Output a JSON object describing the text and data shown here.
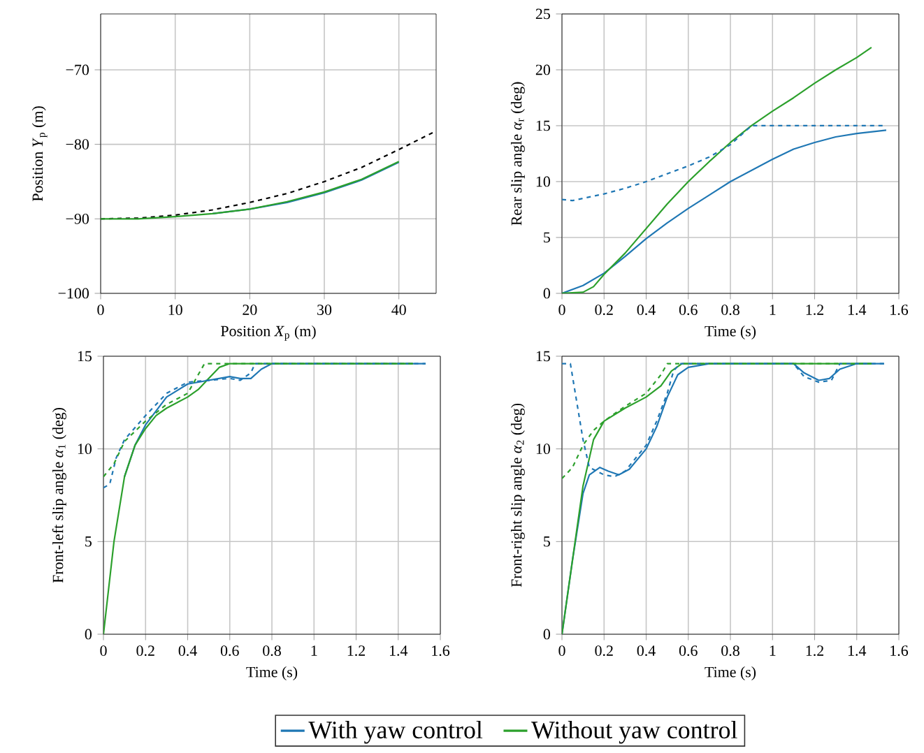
{
  "chart_data": [
    {
      "type": "line",
      "xlabel": "Position *X*$_{p}$ (m)",
      "ylabel": "Position *Y*$_{p}$ (m)",
      "xlim": [
        0,
        45
      ],
      "ylim": [
        -100,
        -62.5
      ],
      "xticks": [
        0,
        10,
        20,
        30,
        40
      ],
      "yticks": [
        {
          "value": -100,
          "label": "−100"
        },
        {
          "value": -90,
          "label": "−90"
        },
        {
          "value": -80,
          "label": "−80"
        },
        {
          "value": -70,
          "label": "−70"
        }
      ],
      "grid": true,
      "series": [
        {
          "color": "#000000",
          "line_style": "dashed",
          "x": [
            0,
            5,
            10,
            15,
            20,
            25,
            30,
            35,
            40,
            45
          ],
          "values": [
            -90,
            -89.9,
            -89.5,
            -88.8,
            -87.8,
            -86.6,
            -85,
            -83.1,
            -80.7,
            -78.2
          ]
        },
        {
          "color": "#1f77b4",
          "line_style": "solid",
          "x": [
            15,
            20,
            25,
            30,
            35,
            40
          ],
          "values": [
            -89.3,
            -88.7,
            -87.8,
            -86.5,
            -84.8,
            -82.4
          ]
        },
        {
          "color": "#2ca02c",
          "line_style": "solid",
          "x": [
            0,
            5,
            10,
            15,
            20,
            25,
            30,
            35,
            40
          ],
          "values": [
            -90,
            -90,
            -89.7,
            -89.3,
            -88.7,
            -87.7,
            -86.4,
            -84.7,
            -82.3
          ]
        }
      ]
    },
    {
      "type": "line",
      "xlabel": "Time (s)",
      "ylabel": "Rear slip angle *α*$_{r}$ (deg)",
      "xlim": [
        0,
        1.6
      ],
      "ylim": [
        0,
        25
      ],
      "xticks": [
        0,
        0.2,
        0.4,
        0.6,
        0.8,
        1,
        1.2,
        1.4,
        1.6
      ],
      "yticks": [
        0,
        5,
        10,
        15,
        20,
        25
      ],
      "grid": true,
      "series": [
        {
          "color": "#1f77b4",
          "line_style": "solid",
          "x": [
            0,
            0.1,
            0.2,
            0.3,
            0.4,
            0.5,
            0.6,
            0.7,
            0.8,
            0.9,
            1.0,
            1.1,
            1.2,
            1.3,
            1.4,
            1.54
          ],
          "values": [
            0,
            0.7,
            1.8,
            3.3,
            4.9,
            6.3,
            7.6,
            8.8,
            10,
            11,
            12,
            12.9,
            13.5,
            14,
            14.3,
            14.6
          ]
        },
        {
          "color": "#2ca02c",
          "line_style": "solid",
          "x": [
            0,
            0.1,
            0.15,
            0.2,
            0.3,
            0.4,
            0.5,
            0.6,
            0.7,
            0.8,
            0.9,
            1.0,
            1.1,
            1.2,
            1.3,
            1.4,
            1.47
          ],
          "values": [
            0,
            0.1,
            0.6,
            1.7,
            3.6,
            5.8,
            8,
            10,
            11.8,
            13.5,
            15,
            16.3,
            17.5,
            18.8,
            20,
            21.1,
            22
          ]
        },
        {
          "color": "#1f77b4",
          "line_style": "dashed",
          "x": [
            0,
            0.05,
            0.1,
            0.2,
            0.3,
            0.4,
            0.5,
            0.6,
            0.7,
            0.8,
            0.9,
            1.0,
            1.2,
            1.4,
            1.53
          ],
          "values": [
            8.4,
            8.3,
            8.5,
            8.9,
            9.4,
            10,
            10.7,
            11.4,
            12.2,
            13.3,
            15,
            15,
            15,
            15,
            15
          ]
        }
      ]
    },
    {
      "type": "line",
      "xlabel": "Time (s)",
      "ylabel": "Front-left slip angle *α*$_{1}$ (deg)",
      "xlim": [
        0,
        1.6
      ],
      "ylim": [
        0,
        15
      ],
      "xticks": [
        0,
        0.2,
        0.4,
        0.6,
        0.8,
        1,
        1.2,
        1.4,
        1.6
      ],
      "yticks": [
        0,
        5,
        10,
        15
      ],
      "grid": true,
      "legend": "bottom",
      "series": [
        {
          "name": "With yaw control",
          "color": "#1f77b4",
          "line_style": "solid",
          "x": [
            0.1,
            0.15,
            0.2,
            0.3,
            0.4,
            0.5,
            0.6,
            0.65,
            0.7,
            0.75,
            0.8,
            1.0,
            1.53
          ],
          "values": [
            8.5,
            10.2,
            11.3,
            12.8,
            13.5,
            13.7,
            13.9,
            13.8,
            13.8,
            14.3,
            14.6,
            14.6,
            14.6
          ]
        },
        {
          "name": "Without yaw control",
          "color": "#2ca02c",
          "line_style": "solid",
          "x": [
            0,
            0.05,
            0.1,
            0.15,
            0.2,
            0.25,
            0.3,
            0.4,
            0.45,
            0.5,
            0.55,
            0.6,
            1.47
          ],
          "values": [
            0,
            5,
            8.5,
            10.2,
            11.1,
            11.8,
            12.2,
            12.8,
            13.2,
            13.8,
            14.4,
            14.6,
            14.6
          ]
        },
        {
          "color": "#1f77b4",
          "line_style": "dashed",
          "x": [
            0,
            0.03,
            0.06,
            0.1,
            0.2,
            0.3,
            0.4,
            0.5,
            0.6,
            0.65,
            0.7,
            0.72,
            1.53
          ],
          "values": [
            7.9,
            8.1,
            9.5,
            10.5,
            11.8,
            13,
            13.6,
            13.7,
            13.8,
            13.7,
            14.1,
            14.6,
            14.6
          ]
        },
        {
          "color": "#2ca02c",
          "line_style": "dashed",
          "x": [
            0,
            0.05,
            0.1,
            0.2,
            0.3,
            0.4,
            0.48,
            1.47
          ],
          "values": [
            8.5,
            9.2,
            10.4,
            11.5,
            12.4,
            13,
            14.6,
            14.6
          ]
        }
      ]
    },
    {
      "type": "line",
      "xlabel": "Time (s)",
      "ylabel": "Front-right slip angle *α*$_{2}$ (deg)",
      "xlim": [
        0,
        1.6
      ],
      "ylim": [
        0,
        15
      ],
      "xticks": [
        0,
        0.2,
        0.4,
        0.6,
        0.8,
        1,
        1.2,
        1.4,
        1.6
      ],
      "yticks": [
        0,
        5,
        10,
        15
      ],
      "grid": true,
      "series": [
        {
          "color": "#1f77b4",
          "line_style": "solid",
          "x": [
            0,
            0.05,
            0.1,
            0.13,
            0.18,
            0.22,
            0.27,
            0.32,
            0.4,
            0.45,
            0.5,
            0.55,
            0.6,
            0.7,
            1.1,
            1.15,
            1.22,
            1.27,
            1.32,
            1.4,
            1.53
          ],
          "values": [
            0,
            4,
            7.6,
            8.6,
            9,
            8.8,
            8.6,
            8.9,
            10,
            11.2,
            12.8,
            14,
            14.4,
            14.6,
            14.6,
            14.1,
            13.7,
            13.8,
            14.3,
            14.6,
            14.6
          ]
        },
        {
          "color": "#2ca02c",
          "line_style": "solid",
          "x": [
            0,
            0.05,
            0.1,
            0.15,
            0.2,
            0.3,
            0.4,
            0.47,
            0.52,
            0.57,
            1.47
          ],
          "values": [
            0,
            4,
            8,
            10.5,
            11.5,
            12.2,
            12.8,
            13.4,
            14.2,
            14.6,
            14.6
          ]
        },
        {
          "color": "#1f77b4",
          "line_style": "dashed",
          "x": [
            0,
            0.04,
            0.1,
            0.13,
            0.2,
            0.25,
            0.3,
            0.4,
            0.45,
            0.5,
            0.53,
            0.56,
            1.1,
            1.15,
            1.22,
            1.28,
            1.32,
            1.53
          ],
          "values": [
            14.6,
            14.6,
            10.5,
            9,
            8.6,
            8.5,
            8.8,
            10.2,
            11.5,
            13,
            14.2,
            14.6,
            14.6,
            13.9,
            13.6,
            13.7,
            14.6,
            14.6
          ]
        },
        {
          "color": "#2ca02c",
          "line_style": "dashed",
          "x": [
            0,
            0.05,
            0.1,
            0.15,
            0.2,
            0.3,
            0.4,
            0.47,
            0.5,
            1.47
          ],
          "values": [
            8.4,
            9,
            10.2,
            11,
            11.5,
            12.3,
            13,
            14,
            14.6,
            14.6
          ]
        }
      ]
    }
  ]
}
